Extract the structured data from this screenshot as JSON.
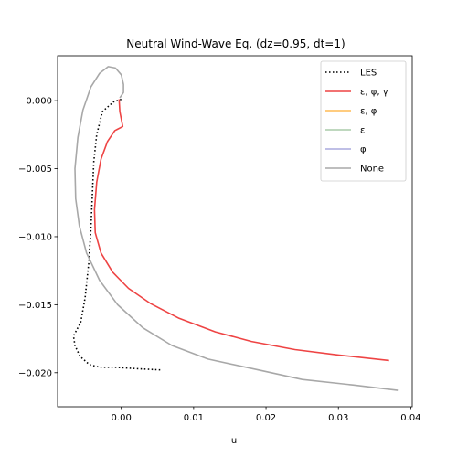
{
  "chart_data": {
    "type": "line",
    "title": "Neutral Wind-Wave Eq. (dz=0.95, dt=1)",
    "xlabel": "u",
    "ylabel": "",
    "xlim": [
      -0.0088,
      0.0402
    ],
    "ylim": [
      -0.0225,
      0.0033
    ],
    "xticks": [
      0.0,
      0.01,
      0.02,
      0.03,
      0.04
    ],
    "xtick_labels": [
      "0.00",
      "0.01",
      "0.02",
      "0.03",
      "0.04"
    ],
    "yticks": [
      0.0,
      -0.005,
      -0.01,
      -0.015,
      -0.02
    ],
    "ytick_labels": [
      "0.000",
      "−0.005",
      "−0.010",
      "−0.015",
      "−0.020"
    ],
    "grid": false,
    "legend_position": "top-right",
    "series": [
      {
        "name": "LES",
        "color": "#000000",
        "style": "dotted",
        "points": [
          [
            0.0,
            0.0001
          ],
          [
            -0.0011,
            -0.0001
          ],
          [
            -0.0026,
            -0.0008
          ],
          [
            -0.0034,
            -0.0025
          ],
          [
            -0.0038,
            -0.0045
          ],
          [
            -0.004,
            -0.007
          ],
          [
            -0.0042,
            -0.0095
          ],
          [
            -0.0045,
            -0.012
          ],
          [
            -0.005,
            -0.0145
          ],
          [
            -0.0056,
            -0.0163
          ],
          [
            -0.0066,
            -0.0173
          ],
          [
            -0.0064,
            -0.018
          ],
          [
            -0.0057,
            -0.0188
          ],
          [
            -0.0044,
            -0.0194
          ],
          [
            -0.003,
            -0.0196
          ],
          [
            -0.001,
            -0.0196
          ],
          [
            0.002,
            -0.0197
          ],
          [
            0.0056,
            -0.0198
          ]
        ]
      },
      {
        "name": "ε, φ, γ",
        "color": "#ee4444",
        "style": "solid",
        "points": [
          [
            -0.0003,
            0.0001
          ],
          [
            -0.0002,
            -0.0008
          ],
          [
            0.0002,
            -0.0019
          ],
          [
            -0.0009,
            -0.0022
          ],
          [
            -0.0019,
            -0.003
          ],
          [
            -0.0028,
            -0.0043
          ],
          [
            -0.0034,
            -0.006
          ],
          [
            -0.0037,
            -0.008
          ],
          [
            -0.0036,
            -0.0097
          ],
          [
            -0.0028,
            -0.0112
          ],
          [
            -0.0012,
            -0.0126
          ],
          [
            0.001,
            -0.0138
          ],
          [
            0.004,
            -0.0149
          ],
          [
            0.008,
            -0.016
          ],
          [
            0.013,
            -0.017
          ],
          [
            0.018,
            -0.0177
          ],
          [
            0.024,
            -0.0183
          ],
          [
            0.03,
            -0.0187
          ],
          [
            0.037,
            -0.0191
          ]
        ]
      },
      {
        "name": "ε, φ",
        "color": "#ffbb55",
        "style": "solid",
        "points": []
      },
      {
        "name": "ε",
        "color": "#aaccaa",
        "style": "solid",
        "points": []
      },
      {
        "name": "φ",
        "color": "#aaaadd",
        "style": "solid",
        "points": []
      },
      {
        "name": "None",
        "color": "#a8a8a8",
        "style": "solid",
        "points": [
          [
            -0.0002,
            0.0002
          ],
          [
            0.0003,
            0.0006
          ],
          [
            0.0003,
            0.0012
          ],
          [
            0.0,
            0.0019
          ],
          [
            -0.0008,
            0.0024
          ],
          [
            -0.0018,
            0.0025
          ],
          [
            -0.003,
            0.002
          ],
          [
            -0.0042,
            0.001
          ],
          [
            -0.0053,
            -0.0007
          ],
          [
            -0.006,
            -0.0027
          ],
          [
            -0.0064,
            -0.005
          ],
          [
            -0.0063,
            -0.0072
          ],
          [
            -0.0058,
            -0.0092
          ],
          [
            -0.0048,
            -0.0112
          ],
          [
            -0.003,
            -0.0132
          ],
          [
            -0.0005,
            -0.015
          ],
          [
            0.003,
            -0.0167
          ],
          [
            0.007,
            -0.018
          ],
          [
            0.012,
            -0.019
          ],
          [
            0.019,
            -0.0198
          ],
          [
            0.025,
            -0.0205
          ],
          [
            0.032,
            -0.0209
          ],
          [
            0.0382,
            -0.0213
          ]
        ]
      }
    ]
  }
}
